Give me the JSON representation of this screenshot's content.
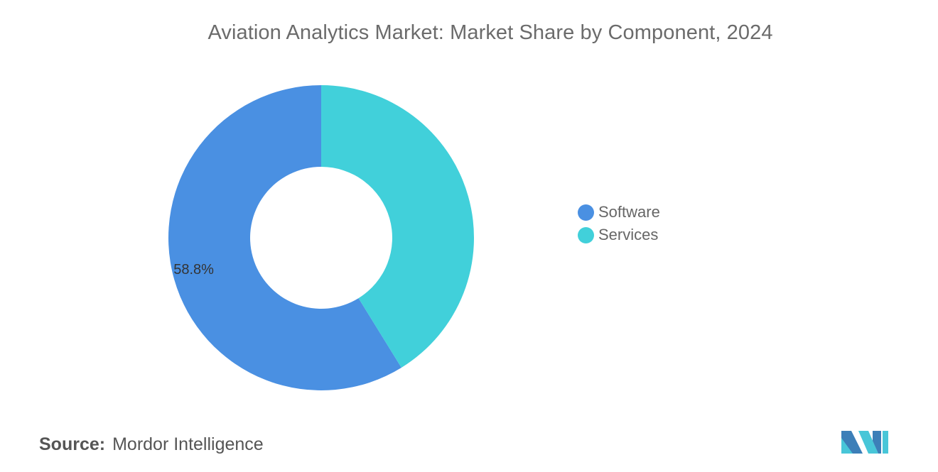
{
  "chart_data": {
    "type": "pie",
    "title": "Aviation Analytics Market: Market Share by Component, 2024",
    "categories": [
      "Software",
      "Services"
    ],
    "values": [
      58.8,
      41.2
    ],
    "data_labels": [
      "58.8%",
      ""
    ],
    "colors": [
      "#4a90e2",
      "#41d0da"
    ],
    "legend_placement": "right",
    "donut": true
  },
  "source": {
    "label": "Source:",
    "text": "Mordor Intelligence"
  },
  "logo": {
    "icon": "mordor-intelligence-logo",
    "colors": [
      "#3c7fb8",
      "#48c6d8"
    ]
  }
}
